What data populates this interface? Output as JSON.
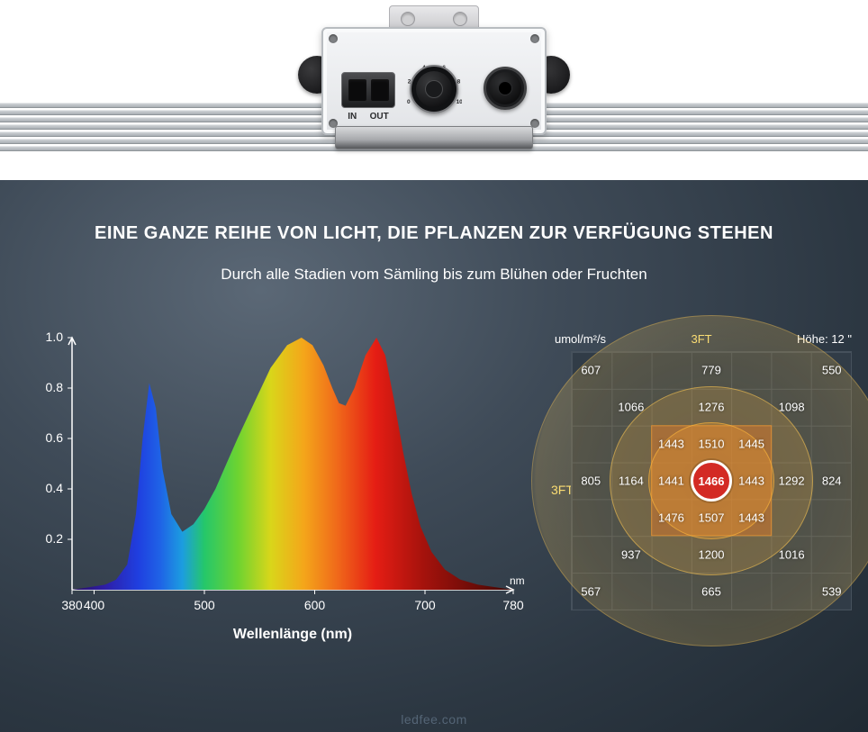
{
  "top": {
    "port_labels": [
      "IN",
      "OUT"
    ],
    "dial_ticks": [
      "0",
      "2",
      "4",
      "6",
      "8",
      "10"
    ]
  },
  "headline": "EINE GANZE REIHE VON LICHT, DIE PFLANZEN ZUR VERFÜGUNG STEHEN",
  "subhead": "Durch alle Stadien vom Sämling bis zum Blühen oder Fruchten",
  "spectrum_chart": {
    "type": "area-spectrum",
    "xlabel": "Wellenlänge   (nm)",
    "x_unit_label": "nm",
    "xlim": [
      380,
      780
    ],
    "ylim": [
      0,
      1.0
    ],
    "xticks": [
      380,
      400,
      500,
      600,
      700,
      780
    ],
    "yticks": [
      0.2,
      0.4,
      0.6,
      0.8,
      1.0
    ],
    "axis_color": "#ffffff",
    "axis_fontsize": 14,
    "label_fontsize": 16,
    "curve": [
      [
        380,
        0.0
      ],
      [
        395,
        0.01
      ],
      [
        410,
        0.02
      ],
      [
        420,
        0.04
      ],
      [
        430,
        0.1
      ],
      [
        438,
        0.3
      ],
      [
        444,
        0.6
      ],
      [
        450,
        0.82
      ],
      [
        456,
        0.72
      ],
      [
        462,
        0.48
      ],
      [
        470,
        0.3
      ],
      [
        480,
        0.23
      ],
      [
        490,
        0.26
      ],
      [
        500,
        0.32
      ],
      [
        510,
        0.4
      ],
      [
        520,
        0.5
      ],
      [
        530,
        0.6
      ],
      [
        545,
        0.74
      ],
      [
        560,
        0.88
      ],
      [
        575,
        0.97
      ],
      [
        588,
        1.0
      ],
      [
        598,
        0.97
      ],
      [
        608,
        0.89
      ],
      [
        616,
        0.8
      ],
      [
        622,
        0.74
      ],
      [
        628,
        0.73
      ],
      [
        636,
        0.8
      ],
      [
        646,
        0.93
      ],
      [
        656,
        1.0
      ],
      [
        664,
        0.93
      ],
      [
        672,
        0.75
      ],
      [
        680,
        0.55
      ],
      [
        688,
        0.38
      ],
      [
        696,
        0.25
      ],
      [
        706,
        0.15
      ],
      [
        718,
        0.08
      ],
      [
        732,
        0.04
      ],
      [
        748,
        0.02
      ],
      [
        764,
        0.01
      ],
      [
        780,
        0.0
      ]
    ],
    "gradient_stops": [
      [
        380,
        "#2a0e63"
      ],
      [
        410,
        "#2e1ea8"
      ],
      [
        440,
        "#1f3fe0"
      ],
      [
        460,
        "#1f63e6"
      ],
      [
        480,
        "#1c9de0"
      ],
      [
        500,
        "#25c76a"
      ],
      [
        530,
        "#6cd331"
      ],
      [
        560,
        "#d9d61a"
      ],
      [
        590,
        "#f4a61a"
      ],
      [
        620,
        "#f06a1a"
      ],
      [
        655,
        "#e51d14"
      ],
      [
        700,
        "#a3120c"
      ],
      [
        760,
        "#5a0a06"
      ],
      [
        780,
        "#3b0704"
      ]
    ],
    "background_color": "transparent"
  },
  "heatmap": {
    "type": "ppfd-grid",
    "unit_label": "umol/m²/s",
    "top_ft_label": "3FT",
    "side_ft_label": "3FT",
    "height_label": "Höhe: 12 \"",
    "ft_color": "#fbe27a",
    "grid_size": 7,
    "grid_line_color": "#46515c",
    "grid_fill_color": "#313c47",
    "center_value": 1466,
    "center_color": "#d32a24",
    "center_border": "#ffffff",
    "ring_color": "#f7c454",
    "square_fill": "rgba(228,122,40,.45)",
    "values": [
      {
        "v": 607,
        "cx": 0.5,
        "cy": 0.5
      },
      {
        "v": 779,
        "cx": 3.5,
        "cy": 0.5
      },
      {
        "v": 550,
        "cx": 6.5,
        "cy": 0.5
      },
      {
        "v": 1066,
        "cx": 1.5,
        "cy": 1.5
      },
      {
        "v": 1276,
        "cx": 3.5,
        "cy": 1.5
      },
      {
        "v": 1098,
        "cx": 5.5,
        "cy": 1.5
      },
      {
        "v": 1443,
        "cx": 2.5,
        "cy": 2.5
      },
      {
        "v": 1510,
        "cx": 3.5,
        "cy": 2.5
      },
      {
        "v": 1445,
        "cx": 4.5,
        "cy": 2.5
      },
      {
        "v": 805,
        "cx": 0.5,
        "cy": 3.5
      },
      {
        "v": 1164,
        "cx": 1.5,
        "cy": 3.5
      },
      {
        "v": 1441,
        "cx": 2.5,
        "cy": 3.5
      },
      {
        "v": 1443,
        "cx": 4.5,
        "cy": 3.5
      },
      {
        "v": 1292,
        "cx": 5.5,
        "cy": 3.5
      },
      {
        "v": 824,
        "cx": 6.5,
        "cy": 3.5
      },
      {
        "v": 1476,
        "cx": 2.5,
        "cy": 4.5
      },
      {
        "v": 1507,
        "cx": 3.5,
        "cy": 4.5
      },
      {
        "v": 1443,
        "cx": 4.5,
        "cy": 4.5
      },
      {
        "v": 937,
        "cx": 1.5,
        "cy": 5.5
      },
      {
        "v": 1200,
        "cx": 3.5,
        "cy": 5.5
      },
      {
        "v": 1016,
        "cx": 5.5,
        "cy": 5.5
      },
      {
        "v": 567,
        "cx": 0.5,
        "cy": 6.5
      },
      {
        "v": 665,
        "cx": 3.5,
        "cy": 6.5
      },
      {
        "v": 539,
        "cx": 6.5,
        "cy": 6.5
      }
    ]
  },
  "watermark": "ledfee.com"
}
